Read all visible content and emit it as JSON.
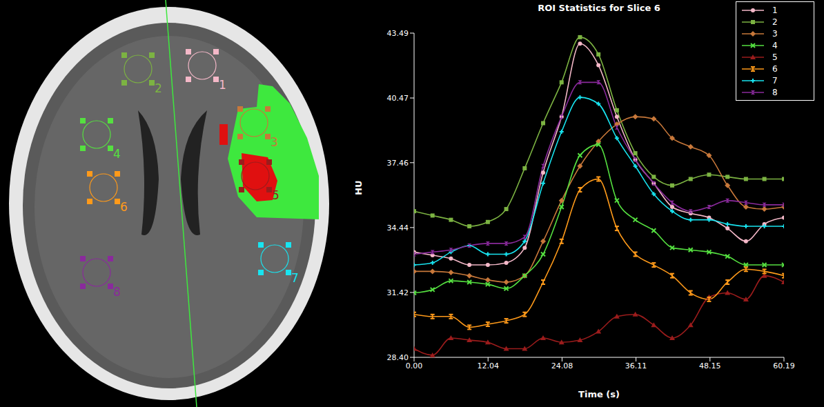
{
  "chart_data": {
    "type": "line",
    "title": "ROI Statistics for Slice 6",
    "x_label": "Time (s)",
    "y_label": "HU",
    "x": [
      0,
      3,
      6,
      9,
      12,
      15,
      18,
      21,
      24,
      27,
      30,
      33,
      36,
      39,
      42,
      45,
      48,
      51,
      54,
      57,
      60.19
    ],
    "xlim": [
      0,
      60.19
    ],
    "xticks": [
      {
        "value": 0,
        "label": "0.00"
      },
      12.04,
      24.08,
      36.11,
      48.15,
      60.19
    ],
    "ylim": [
      28.4,
      43.49
    ],
    "yticks": [
      {
        "value": 28.4,
        "label": "28.40"
      },
      31.42,
      34.44,
      37.46,
      40.47,
      43.49
    ],
    "grid": false,
    "legend": "upper right",
    "series": [
      {
        "name": "1",
        "color": "#f4b8c8",
        "marker": "circle",
        "values": [
          33.3,
          33.15,
          33.0,
          32.7,
          32.7,
          32.8,
          33.5,
          37.0,
          39.6,
          43.0,
          42.0,
          39.6,
          37.6,
          36.5,
          35.4,
          35.1,
          34.9,
          34.4,
          33.8,
          34.6,
          34.9
        ]
      },
      {
        "name": "2",
        "color": "#7cb342",
        "marker": "square",
        "values": [
          35.2,
          35.0,
          34.8,
          34.5,
          34.7,
          35.3,
          37.2,
          39.3,
          41.2,
          43.3,
          42.5,
          39.9,
          37.9,
          36.8,
          36.4,
          36.7,
          36.9,
          36.8,
          36.7,
          36.7,
          36.7
        ]
      },
      {
        "name": "3",
        "color": "#c8783a",
        "marker": "diamond",
        "values": [
          32.4,
          32.4,
          32.35,
          32.2,
          32.0,
          31.9,
          32.2,
          33.8,
          35.7,
          37.3,
          38.45,
          39.25,
          39.6,
          39.5,
          38.6,
          38.2,
          37.8,
          36.4,
          35.4,
          35.3,
          35.4
        ]
      },
      {
        "name": "4",
        "color": "#55e040",
        "marker": "x",
        "values": [
          31.4,
          31.55,
          31.96,
          31.9,
          31.8,
          31.6,
          32.2,
          33.2,
          35.4,
          37.8,
          38.3,
          35.7,
          34.8,
          34.3,
          33.5,
          33.4,
          33.3,
          33.1,
          32.7,
          32.7,
          32.7
        ]
      },
      {
        "name": "5",
        "color": "#9b1c1c",
        "marker": "triangle",
        "values": [
          28.8,
          28.5,
          29.3,
          29.2,
          29.1,
          28.8,
          28.8,
          29.3,
          29.1,
          29.2,
          29.6,
          30.3,
          30.4,
          29.9,
          29.3,
          29.9,
          31.2,
          31.4,
          31.1,
          32.2,
          31.9
        ]
      },
      {
        "name": "6",
        "color": "#ff9a1a",
        "marker": "bar",
        "values": [
          30.4,
          30.3,
          30.3,
          29.8,
          29.94,
          30.1,
          30.4,
          31.9,
          33.8,
          36.2,
          36.7,
          34.4,
          33.2,
          32.7,
          32.2,
          31.4,
          31.1,
          31.9,
          32.5,
          32.4,
          32.2
        ]
      },
      {
        "name": "7",
        "color": "#18e4f0",
        "marker": "plus",
        "values": [
          32.7,
          32.8,
          33.3,
          33.6,
          33.2,
          33.2,
          33.8,
          36.5,
          38.9,
          40.5,
          40.2,
          38.6,
          37.3,
          36.0,
          35.2,
          34.8,
          34.8,
          34.6,
          34.5,
          34.5,
          34.5
        ]
      },
      {
        "name": "8",
        "color": "#8a2a9c",
        "marker": "hourglass",
        "values": [
          33.2,
          33.3,
          33.4,
          33.6,
          33.7,
          33.7,
          34.0,
          37.3,
          39.6,
          41.2,
          41.2,
          39.1,
          37.6,
          36.5,
          35.6,
          35.2,
          35.4,
          35.7,
          35.6,
          35.5,
          35.5
        ]
      }
    ]
  }
}
